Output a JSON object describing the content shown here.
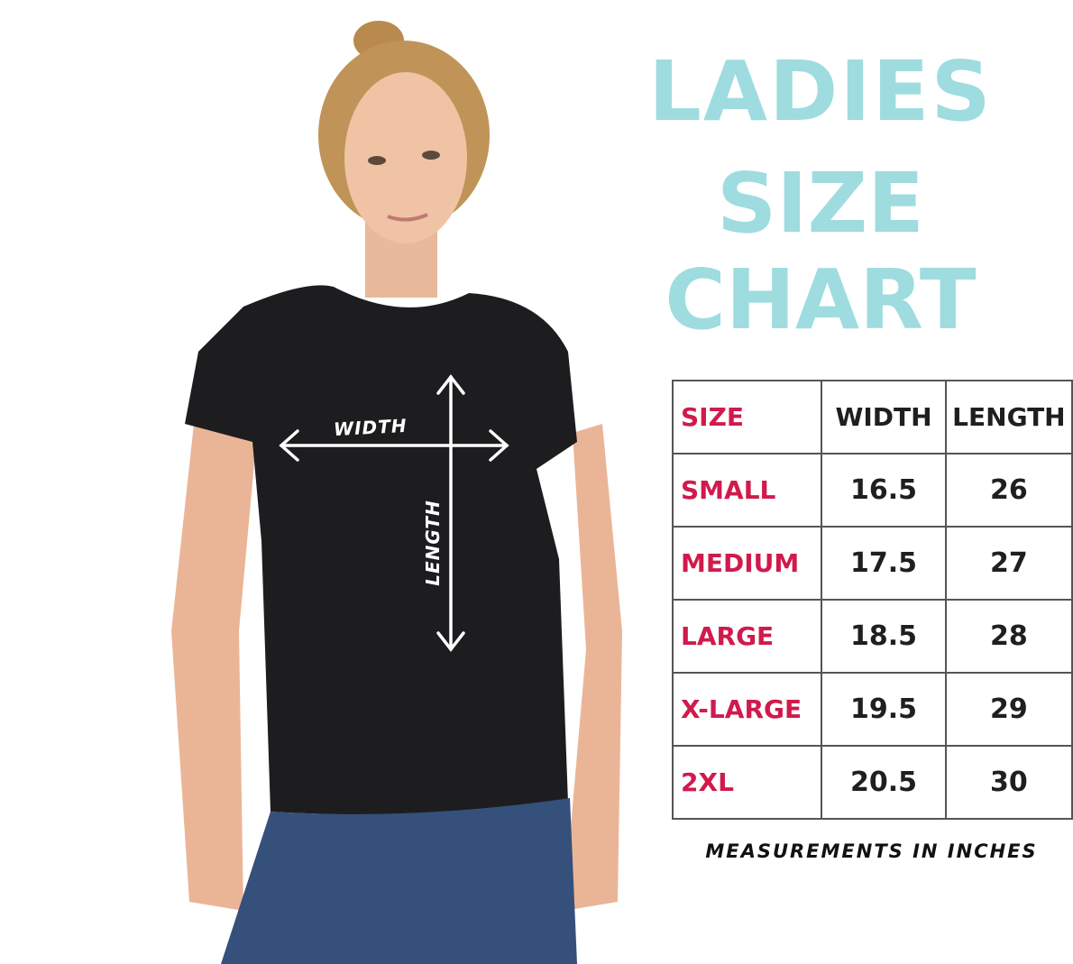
{
  "title": {
    "line1": "LADIES",
    "line2": "SIZE CHART"
  },
  "photo": {
    "labels": {
      "width": "WIDTH",
      "length": "LENGTH"
    }
  },
  "table": {
    "headers": [
      "SIZE",
      "WIDTH",
      "LENGTH"
    ],
    "rows": [
      [
        "SMALL",
        "16.5",
        "26"
      ],
      [
        "MEDIUM",
        "17.5",
        "27"
      ],
      [
        "LARGE",
        "18.5",
        "28"
      ],
      [
        "X-LARGE",
        "19.5",
        "29"
      ],
      [
        "2XL",
        "20.5",
        "30"
      ]
    ]
  },
  "note": "MEASUREMENTS IN INCHES",
  "colors": {
    "title": "#9edcdf",
    "size_label": "#d11a4c",
    "text": "#1f1f1f"
  }
}
